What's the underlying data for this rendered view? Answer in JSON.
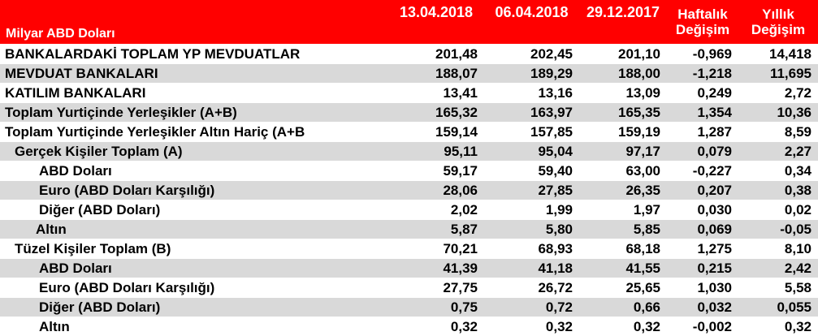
{
  "header": {
    "label": "Milyar ABD Doları",
    "col1": "13.04.2018",
    "col2": "06.04.2018",
    "col3": "29.12.2017",
    "col4_line1": "Haftalık",
    "col4_line2": "Değişim",
    "col5_line1": "Yıllık",
    "col5_line2": "Değişim"
  },
  "rows": [
    {
      "label": "BANKALARDAKİ TOPLAM YP MEVDUATLAR",
      "v1": "201,48",
      "v2": "202,45",
      "v3": "201,10",
      "v4": "-0,969",
      "v5": "14,418"
    },
    {
      "label": "MEVDUAT BANKALARI",
      "v1": "188,07",
      "v2": "189,29",
      "v3": "188,00",
      "v4": "-1,218",
      "v5": "11,695"
    },
    {
      "label": "KATILIM BANKALARI",
      "v1": "13,41",
      "v2": "13,16",
      "v3": "13,09",
      "v4": "0,249",
      "v5": "2,72"
    },
    {
      "label": "Toplam Yurtiçinde Yerleşikler (A+B)",
      "v1": "165,32",
      "v2": "163,97",
      "v3": "165,35",
      "v4": "1,354",
      "v5": "10,36"
    },
    {
      "label": "Toplam Yurtiçinde Yerleşikler Altın Hariç (A+B",
      "v1": "159,14",
      "v2": "157,85",
      "v3": "159,19",
      "v4": "1,287",
      "v5": "8,59"
    },
    {
      "label": "Gerçek Kişiler Toplam (A)",
      "v1": "95,11",
      "v2": "95,04",
      "v3": "97,17",
      "v4": "0,079",
      "v5": "2,27"
    },
    {
      "label": "ABD Doları",
      "v1": "59,17",
      "v2": "59,40",
      "v3": "63,00",
      "v4": "-0,227",
      "v5": "0,34"
    },
    {
      "label": "Euro (ABD Doları Karşılığı)",
      "v1": "28,06",
      "v2": "27,85",
      "v3": "26,35",
      "v4": "0,207",
      "v5": "0,38"
    },
    {
      "label": "Diğer (ABD Doları)",
      "v1": "2,02",
      "v2": "1,99",
      "v3": "1,97",
      "v4": "0,030",
      "v5": "0,02"
    },
    {
      "label": "Altın",
      "v1": "5,87",
      "v2": "5,80",
      "v3": "5,85",
      "v4": "0,069",
      "v5": "-0,05"
    },
    {
      "label": "Tüzel Kişiler Toplam (B)",
      "v1": "70,21",
      "v2": "68,93",
      "v3": "68,18",
      "v4": "1,275",
      "v5": "8,10"
    },
    {
      "label": "ABD Doları",
      "v1": "41,39",
      "v2": "41,18",
      "v3": "41,55",
      "v4": "0,215",
      "v5": "2,42"
    },
    {
      "label": "Euro (ABD Doları Karşılığı)",
      "v1": "27,75",
      "v2": "26,72",
      "v3": "25,65",
      "v4": "1,030",
      "v5": "5,58"
    },
    {
      "label": "Diğer (ABD Doları)",
      "v1": "0,75",
      "v2": "0,72",
      "v3": "0,66",
      "v4": "0,032",
      "v5": "0,055"
    },
    {
      "label": "Altın",
      "v1": "0,32",
      "v2": "0,32",
      "v3": "0,32",
      "v4": "-0,002",
      "v5": "0,32"
    }
  ]
}
